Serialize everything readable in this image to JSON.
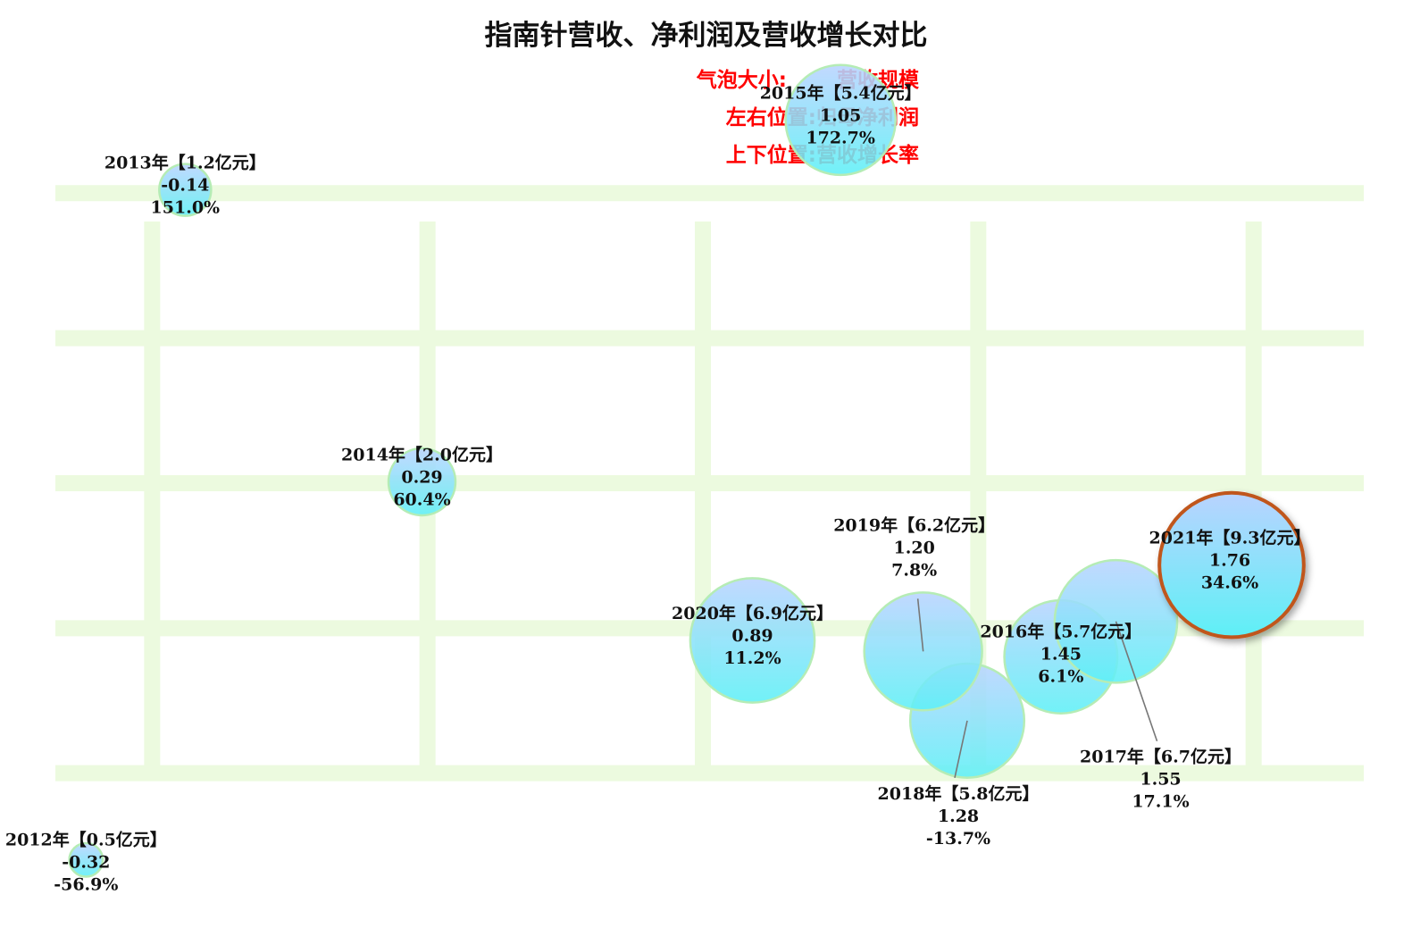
{
  "title": "指南针营收、净利润及营收增长对比",
  "legend": {
    "size_label": "气泡大小:       营收规模",
    "x_label": "左右位置:归母净利润",
    "y_label": "上下位置:营收增长率"
  },
  "colors": {
    "bubble_top": "#b9d3ff",
    "bubble_bottom": "#5ef0f6",
    "bubble_border": "#b5ecb5",
    "highlight_border": "#c0561b",
    "grid": "#ecfadf",
    "leader": "#777777"
  },
  "chart_data": {
    "type": "scatter",
    "title": "指南针营收、净利润及营收增长对比",
    "xlabel": "左右位置:归母净利润",
    "ylabel": "上下位置:营收增长率",
    "size_label": "气泡大小:营收规模",
    "xlim": [
      -0.4,
      2.0
    ],
    "ylim": [
      -70,
      180
    ],
    "grid": true,
    "points": [
      {
        "year": "2012年",
        "revenue": 0.5,
        "label": "2012年【0.5亿元】",
        "x_label": "-0.32",
        "y_label": "-56.9%",
        "x": -0.32,
        "y": -56.9
      },
      {
        "year": "2013年",
        "revenue": 1.2,
        "label": "2013年【1.2亿元】",
        "x_label": "-0.14",
        "y_label": "151.0%",
        "x": -0.14,
        "y": 151.0
      },
      {
        "year": "2014年",
        "revenue": 2.0,
        "label": "2014年【2.0亿元】",
        "x_label": "0.29",
        "y_label": "60.4%",
        "x": 0.29,
        "y": 60.4
      },
      {
        "year": "2015年",
        "revenue": 5.4,
        "label": "2015年【5.4亿元】",
        "x_label": "1.05",
        "y_label": "172.7%",
        "x": 1.05,
        "y": 172.7
      },
      {
        "year": "2016年",
        "revenue": 5.7,
        "label": "2016年【5.7亿元】",
        "x_label": "1.45",
        "y_label": "6.1%",
        "x": 1.45,
        "y": 6.1
      },
      {
        "year": "2017年",
        "revenue": 6.7,
        "label": "2017年【6.7亿元】",
        "x_label": "1.55",
        "y_label": "17.1%",
        "x": 1.55,
        "y": 17.1
      },
      {
        "year": "2018年",
        "revenue": 5.8,
        "label": "2018年【5.8亿元】",
        "x_label": "1.28",
        "y_label": "-13.7%",
        "x": 1.28,
        "y": -13.7
      },
      {
        "year": "2019年",
        "revenue": 6.2,
        "label": "2019年【6.2亿元】",
        "x_label": "1.20",
        "y_label": "7.8%",
        "x": 1.2,
        "y": 7.8
      },
      {
        "year": "2020年",
        "revenue": 6.9,
        "label": "2020年【6.9亿元】",
        "x_label": "0.89",
        "y_label": "11.2%",
        "x": 0.89,
        "y": 11.2
      },
      {
        "year": "2021年",
        "revenue": 9.3,
        "label": "2021年【9.3亿元】",
        "x_label": "1.76",
        "y_label": "34.6%",
        "x": 1.76,
        "y": 34.6,
        "highlight": true
      }
    ]
  }
}
